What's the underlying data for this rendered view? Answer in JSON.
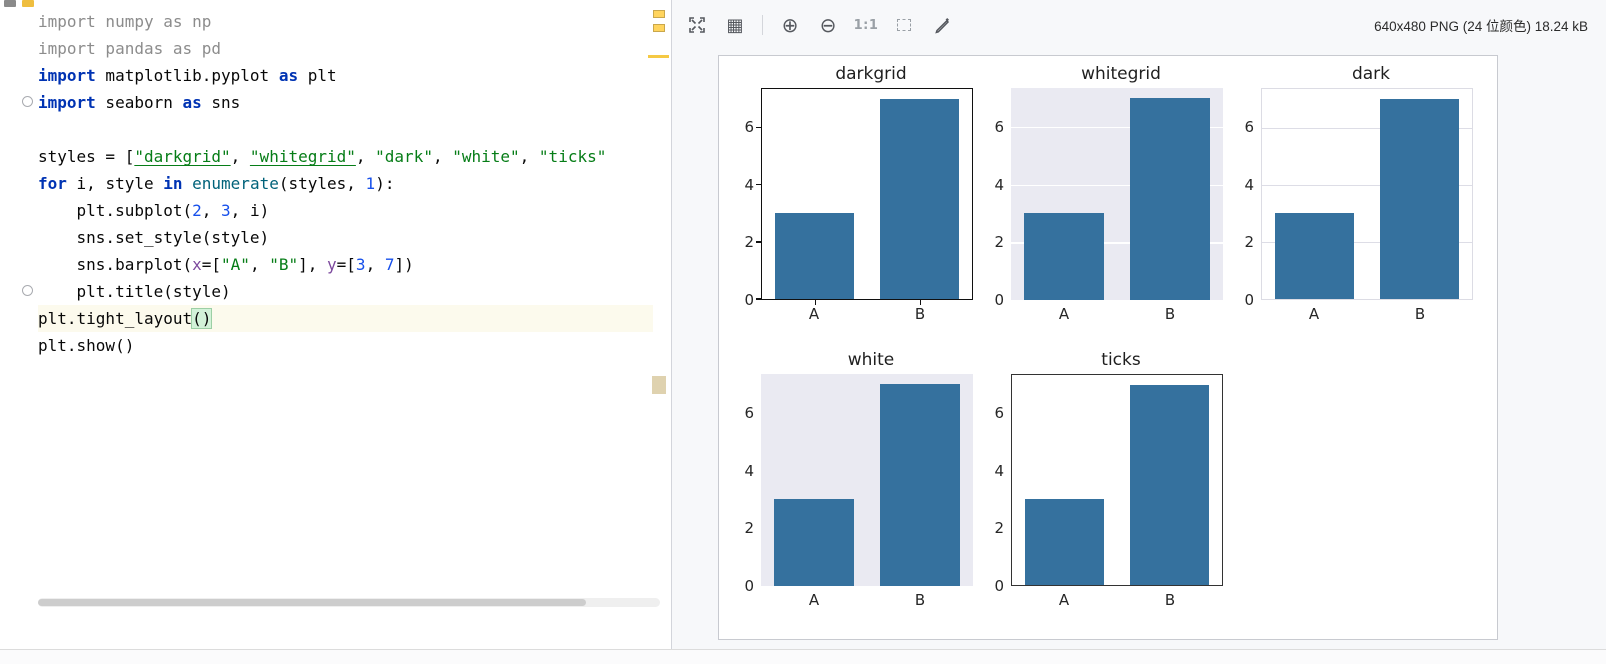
{
  "accent_colors": {
    "bar_blue": "#35719E",
    "axes_background_lavender": "#EAEAF2",
    "warning_yellow": "#F5C944",
    "keyword_blue": "#0033B3",
    "string_green": "#067D17"
  },
  "editor": {
    "active_line": 12,
    "lines": [
      [
        {
          "t": "import numpy as np",
          "c": "gray"
        }
      ],
      [
        {
          "t": "import pandas as pd",
          "c": "gray"
        }
      ],
      [
        {
          "t": "import",
          "c": "kw"
        },
        {
          "t": " matplotlib.pyplot ",
          "c": "plain"
        },
        {
          "t": "as",
          "c": "kw"
        },
        {
          "t": " plt",
          "c": "plain"
        }
      ],
      [
        {
          "t": "import",
          "c": "kw"
        },
        {
          "t": " seaborn ",
          "c": "plain"
        },
        {
          "t": "as",
          "c": "kw"
        },
        {
          "t": " sns",
          "c": "plain"
        }
      ],
      [],
      [
        {
          "t": "styles = [",
          "c": "plain"
        },
        {
          "t": "\"darkgrid\"",
          "c": "str-u"
        },
        {
          "t": ", ",
          "c": "plain"
        },
        {
          "t": "\"whitegrid\"",
          "c": "str-u"
        },
        {
          "t": ", ",
          "c": "plain"
        },
        {
          "t": "\"dark\"",
          "c": "str"
        },
        {
          "t": ", ",
          "c": "plain"
        },
        {
          "t": "\"white\"",
          "c": "str"
        },
        {
          "t": ", ",
          "c": "plain"
        },
        {
          "t": "\"ticks\"",
          "c": "str"
        }
      ],
      [
        {
          "t": "for",
          "c": "kw"
        },
        {
          "t": " i, style ",
          "c": "plain"
        },
        {
          "t": "in",
          "c": "kw"
        },
        {
          "t": " ",
          "c": "plain"
        },
        {
          "t": "enumerate",
          "c": "builtin"
        },
        {
          "t": "(styles, ",
          "c": "plain"
        },
        {
          "t": "1",
          "c": "num"
        },
        {
          "t": "):",
          "c": "plain"
        }
      ],
      [
        {
          "t": "    plt.subplot(",
          "c": "plain"
        },
        {
          "t": "2",
          "c": "num"
        },
        {
          "t": ", ",
          "c": "plain"
        },
        {
          "t": "3",
          "c": "num"
        },
        {
          "t": ", i)",
          "c": "plain"
        }
      ],
      [
        {
          "t": "    sns.set_style(style)",
          "c": "plain"
        }
      ],
      [
        {
          "t": "    sns.barplot(",
          "c": "plain"
        },
        {
          "t": "x",
          "c": "param"
        },
        {
          "t": "=[",
          "c": "plain"
        },
        {
          "t": "\"A\"",
          "c": "str"
        },
        {
          "t": ", ",
          "c": "plain"
        },
        {
          "t": "\"B\"",
          "c": "str"
        },
        {
          "t": "], ",
          "c": "plain"
        },
        {
          "t": "y",
          "c": "param"
        },
        {
          "t": "=[",
          "c": "plain"
        },
        {
          "t": "3",
          "c": "num"
        },
        {
          "t": ", ",
          "c": "plain"
        },
        {
          "t": "7",
          "c": "num"
        },
        {
          "t": "])",
          "c": "plain"
        }
      ],
      [
        {
          "t": "    plt.title(style)",
          "c": "plain"
        }
      ],
      [
        {
          "t": "plt.tight_layout",
          "c": "plain"
        },
        {
          "t": "()",
          "c": "bracket-hl"
        }
      ],
      [
        {
          "t": "plt.show()",
          "c": "plain"
        }
      ]
    ]
  },
  "viewer": {
    "toolbar": {
      "icons": [
        {
          "name": "fit-to-window-icon"
        },
        {
          "name": "grid-view-icon",
          "glyph": "▦"
        },
        {
          "name": "zoom-in-icon",
          "glyph": "⊕"
        },
        {
          "name": "zoom-out-icon",
          "glyph": "⊖"
        },
        {
          "name": "actual-size-label",
          "glyph": "1:1"
        },
        {
          "name": "frame-select-icon"
        },
        {
          "name": "pen-icon"
        }
      ],
      "info": "640x480 PNG (24 位颜色) 18.24 kB"
    }
  },
  "chart_data": [
    {
      "type": "bar",
      "title": "darkgrid",
      "axes_style": "default-box",
      "categories": [
        "A",
        "B"
      ],
      "values": [
        3,
        7
      ],
      "yticks": [
        0,
        2,
        4,
        6
      ],
      "ylim": [
        0,
        7.35
      ],
      "bar_color": "#35719E",
      "grid": false
    },
    {
      "type": "bar",
      "title": "whitegrid",
      "axes_style": "darkgrid",
      "categories": [
        "A",
        "B"
      ],
      "values": [
        3,
        7
      ],
      "yticks": [
        0,
        2,
        4,
        6
      ],
      "ylim": [
        0,
        7.35
      ],
      "bar_color": "#35719E",
      "grid": true
    },
    {
      "type": "bar",
      "title": "dark",
      "axes_style": "whitegrid",
      "categories": [
        "A",
        "B"
      ],
      "values": [
        3,
        7
      ],
      "yticks": [
        0,
        2,
        4,
        6
      ],
      "ylim": [
        0,
        7.35
      ],
      "bar_color": "#35719E",
      "grid": true
    },
    {
      "type": "bar",
      "title": "white",
      "axes_style": "dark",
      "categories": [
        "A",
        "B"
      ],
      "values": [
        3,
        7
      ],
      "yticks": [
        0,
        2,
        4,
        6
      ],
      "ylim": [
        0,
        7.35
      ],
      "bar_color": "#35719E",
      "grid": false
    },
    {
      "type": "bar",
      "title": "ticks",
      "axes_style": "white-box",
      "categories": [
        "A",
        "B"
      ],
      "values": [
        3,
        7
      ],
      "yticks": [
        0,
        2,
        4,
        6
      ],
      "ylim": [
        0,
        7.35
      ],
      "bar_color": "#35719E",
      "grid": false
    }
  ]
}
